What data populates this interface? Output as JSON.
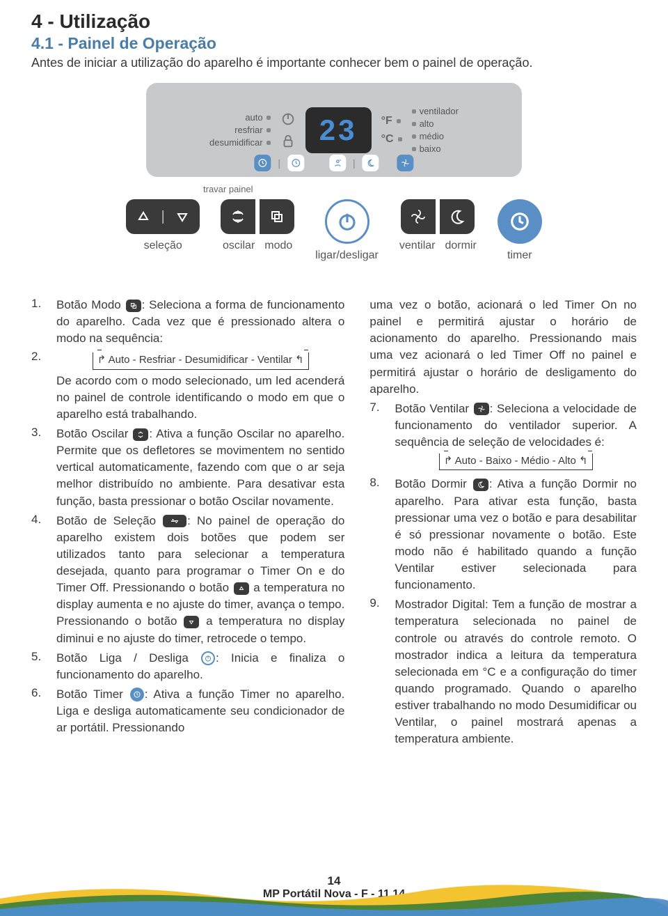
{
  "title": "4 - Utilização",
  "subtitle": "4.1 - Painel de Operação",
  "intro": "Antes de iniciar a utilização do aparelho é importante conhecer bem o painel de operação.",
  "panel": {
    "left_labels": [
      "auto",
      "resfriar",
      "desumidificar"
    ],
    "display_value": "23",
    "units": [
      "°F",
      "°C"
    ],
    "right_labels": [
      "ventilador",
      "alto",
      "médio",
      "baixo"
    ],
    "colors": {
      "panel_bg": "#c7c9cb",
      "display_bg": "#2b2b2b",
      "display_fg": "#4a8dd4",
      "accent": "#5a8fc5",
      "dark": "#3a3a3a"
    }
  },
  "travar": "travar painel",
  "buttons": {
    "selecao": "seleção",
    "oscilar": "oscilar",
    "modo": "modo",
    "ligar": "ligar/desligar",
    "ventilar": "ventilar",
    "dormir": "dormir",
    "timer": "timer"
  },
  "list_left": [
    {
      "n": "1.",
      "text_a": "Botão Modo ",
      "text_b": ": Seleciona a forma de funcionamento do aparelho. Cada vez que é pressionado altera o modo na sequência:",
      "icon": "modo"
    },
    {
      "n": "2.",
      "seq": "Auto - Resfriar - Desumidificar - Ventilar",
      "text_b": "De acordo com o modo selecionado, um led acenderá no painel de controle identificando o modo em que o aparelho está trabalhando."
    },
    {
      "n": "3.",
      "text_a": "Botão Oscilar ",
      "icon": "oscilar",
      "text_b": ": Ativa a função Oscilar no aparelho. Permite que os defletores se movimentem no sentido vertical automaticamente, fazendo com que o ar seja melhor distribuído no ambiente. Para desativar esta função, basta pressionar o botão Oscilar novamente."
    },
    {
      "n": "4.",
      "text_a": "Botão de Seleção ",
      "icon": "selecao",
      "text_b": ": No painel de operação do aparelho existem dois botões que podem ser utilizados tanto para selecionar a temperatura desejada, quanto para programar o Timer On e do Timer Off. Pressionando o botão ",
      "icon2": "up",
      "text_c": " a temperatura no display aumenta e no ajuste do timer, avança o tempo. Pressionando o botão ",
      "icon3": "down",
      "text_d": " a temperatura no display diminui e no ajuste do timer, retrocede o tempo."
    },
    {
      "n": "5.",
      "text_a": "Botão Liga / Desliga ",
      "icon": "power-o",
      "text_b": ": Inicia e finaliza o funcionamento do aparelho."
    },
    {
      "n": "6.",
      "text_a": "Botão Timer ",
      "icon": "timer-f",
      "text_b": ": Ativa a função Timer no aparelho. Liga e desliga automaticamente seu condicionador de ar portátil. Pressionando"
    }
  ],
  "right_intro": "uma vez o botão, acionará o led Timer On no painel e permitirá ajustar o horário de acionamento do aparelho. Pressionando mais uma vez acionará o led Timer Off no painel e permitirá ajustar o horário de desligamento do aparelho.",
  "list_right": [
    {
      "n": "7.",
      "text_a": "Botão Ventilar ",
      "icon": "ventilar",
      "text_b": ": Seleciona a velocidade de funcionamento do ventilador superior. A sequência de seleção de velocidades é:",
      "seq": "Auto - Baixo - Médio - Alto"
    },
    {
      "n": "8.",
      "text_a": "Botão Dormir ",
      "icon": "dormir",
      "text_b": ": Ativa a função Dormir no aparelho. Para ativar esta função, basta pressionar uma vez o botão e para desabilitar é só pressionar novamente o botão. Este modo não é habilitado quando a função Ventilar estiver selecionada para funcionamento."
    },
    {
      "n": "9.",
      "text_a": "",
      "text_b": "Mostrador Digital: Tem a função de mostrar a temperatura selecionada no painel de controle ou através do controle remoto. O mostrador indica a leitura da temperatura selecionada em °C e a configuração do timer quando programado. Quando o aparelho estiver trabalhando no modo Desumidificar ou Ventilar, o painel mostrará apenas a temperatura ambiente."
    }
  ],
  "footer": {
    "page": "14",
    "doc": "MP Portátil Nova - F - 11.14"
  },
  "wave_colors": [
    "#f4c430",
    "#3a7d3a",
    "#4a8dd4"
  ]
}
